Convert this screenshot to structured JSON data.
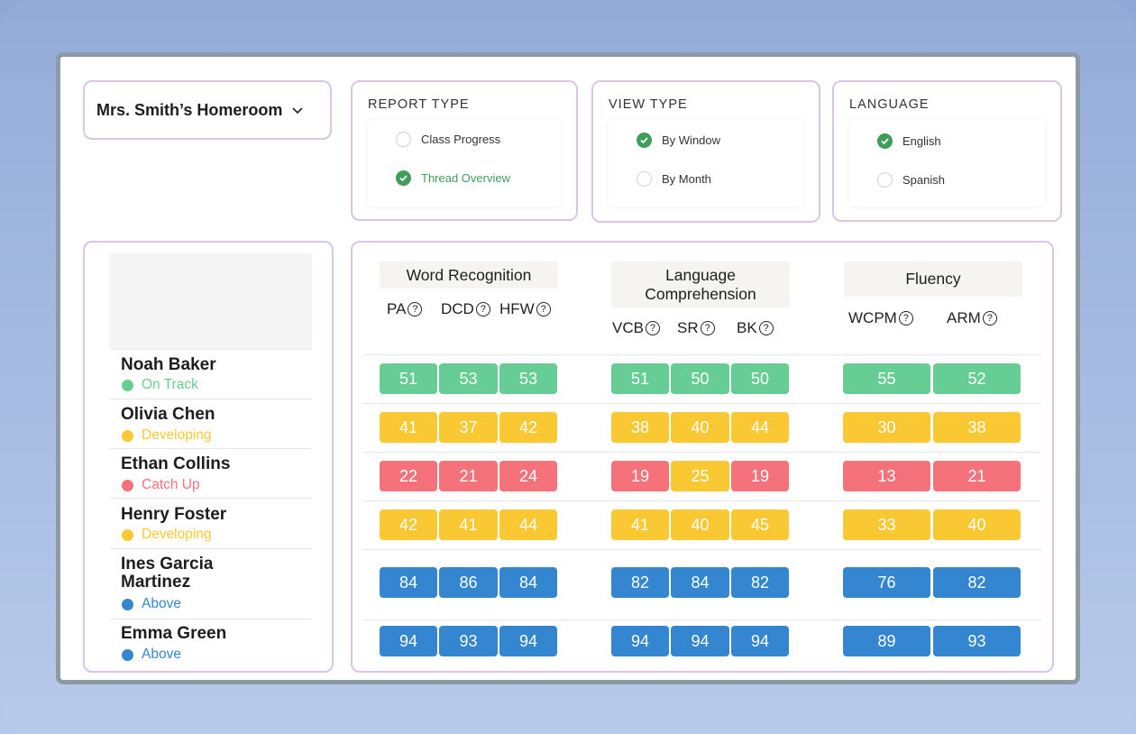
{
  "class_selector": {
    "label": "Mrs. Smith’s Homeroom"
  },
  "report_type": {
    "title": "REPORT TYPE",
    "options": [
      {
        "label": "Class Progress",
        "selected": false
      },
      {
        "label": "Thread Overview",
        "selected": true
      }
    ]
  },
  "view_type": {
    "title": "VIEW TYPE",
    "options": [
      {
        "label": "By Window",
        "selected": true
      },
      {
        "label": "By Month",
        "selected": false
      }
    ]
  },
  "language": {
    "title": "LANGUAGE",
    "options": [
      {
        "label": "English",
        "selected": true
      },
      {
        "label": "Spanish",
        "selected": false
      }
    ]
  },
  "colors": {
    "accent": "#3f9d5c",
    "on_track": "#66cd94",
    "developing": "#fac832",
    "catch_up": "#f5727a",
    "above": "#3386cf"
  },
  "groups": [
    {
      "title": "Word Recognition",
      "subs": [
        "PA",
        "DCD",
        "HFW"
      ]
    },
    {
      "title": "Language Comprehension",
      "subs": [
        "VCB",
        "SR",
        "BK"
      ]
    },
    {
      "title": "Fluency",
      "subs": [
        "WCPM",
        "ARM"
      ]
    }
  ],
  "help_glyph": "?",
  "students": [
    {
      "name": "Noah Baker",
      "status": "On Track",
      "level": "on_track",
      "scores": [
        [
          51,
          53,
          53
        ],
        [
          51,
          50,
          50
        ],
        [
          55,
          52
        ]
      ],
      "levels": [
        [
          "on_track",
          "on_track",
          "on_track"
        ],
        [
          "on_track",
          "on_track",
          "on_track"
        ],
        [
          "on_track",
          "on_track"
        ]
      ]
    },
    {
      "name": "Olivia Chen",
      "status": "Developing",
      "level": "developing",
      "scores": [
        [
          41,
          37,
          42
        ],
        [
          38,
          40,
          44
        ],
        [
          30,
          38
        ]
      ],
      "levels": [
        [
          "developing",
          "developing",
          "developing"
        ],
        [
          "developing",
          "developing",
          "developing"
        ],
        [
          "developing",
          "developing"
        ]
      ]
    },
    {
      "name": "Ethan Collins",
      "status": "Catch Up",
      "level": "catch_up",
      "scores": [
        [
          22,
          21,
          24
        ],
        [
          19,
          25,
          19
        ],
        [
          13,
          21
        ]
      ],
      "levels": [
        [
          "catch_up",
          "catch_up",
          "catch_up"
        ],
        [
          "catch_up",
          "developing",
          "catch_up"
        ],
        [
          "catch_up",
          "catch_up"
        ]
      ]
    },
    {
      "name": "Henry Foster",
      "status": "Developing",
      "level": "developing",
      "scores": [
        [
          42,
          41,
          44
        ],
        [
          41,
          40,
          45
        ],
        [
          33,
          40
        ]
      ],
      "levels": [
        [
          "developing",
          "developing",
          "developing"
        ],
        [
          "developing",
          "developing",
          "developing"
        ],
        [
          "developing",
          "developing"
        ]
      ]
    },
    {
      "name": "Ines Garcia Martinez",
      "status": "Above",
      "level": "above",
      "scores": [
        [
          84,
          86,
          84
        ],
        [
          82,
          84,
          82
        ],
        [
          76,
          82
        ]
      ],
      "levels": [
        [
          "above",
          "above",
          "above"
        ],
        [
          "above",
          "above",
          "above"
        ],
        [
          "above",
          "above"
        ]
      ]
    },
    {
      "name": "Emma Green",
      "status": "Above",
      "level": "above",
      "scores": [
        [
          94,
          93,
          94
        ],
        [
          94,
          94,
          94
        ],
        [
          89,
          93
        ]
      ],
      "levels": [
        [
          "above",
          "above",
          "above"
        ],
        [
          "above",
          "above",
          "above"
        ],
        [
          "above",
          "above"
        ]
      ]
    }
  ]
}
